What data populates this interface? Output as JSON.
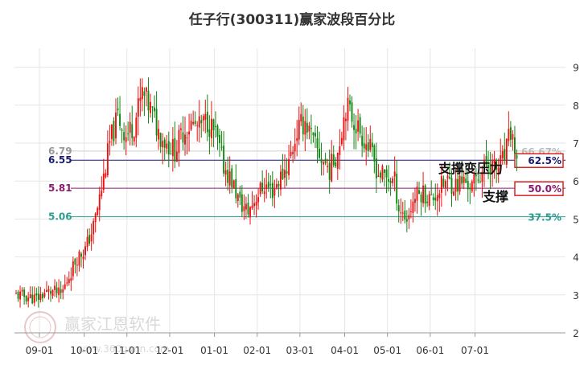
{
  "title": "任子行(300311)赢家波段百分比",
  "watermark": {
    "brand": "赢家江恩软件",
    "url": "www.360gann.com"
  },
  "colors": {
    "up": "#ee1111",
    "down": "#118811",
    "grid": "#e6e6e6",
    "line_6_55": "#1a1a6e",
    "line_5_81": "#8b1a6e",
    "line_5_06": "#2a9d8f",
    "line_6_79": "#cfcfcf"
  },
  "chart_data": {
    "type": "candlestick",
    "title": "任子行(300311)赢家波段百分比",
    "y_ticks": [
      2,
      3,
      4,
      5,
      6,
      7,
      8,
      9
    ],
    "ylim": [
      2,
      9.5
    ],
    "x_ticks": [
      "09-01",
      "10-01",
      "11-01",
      "12-01",
      "01-01",
      "02-01",
      "03-01",
      "04-01",
      "05-01",
      "06-01",
      "07-01"
    ],
    "levels": [
      {
        "value": 6.79,
        "label_left": "6.79",
        "label_right": "66.67%",
        "color": "#cfcfcf",
        "box": false
      },
      {
        "value": 6.55,
        "label_left": "6.55",
        "label_right": "62.5%",
        "color": "#1a1a6e",
        "box": true
      },
      {
        "value": 5.81,
        "label_left": "5.81",
        "label_right": "50.0%",
        "color": "#8b1a6e",
        "box": true
      },
      {
        "value": 5.06,
        "label_left": "5.06",
        "label_right": "37.5%",
        "color": "#2a9d8f",
        "box": false
      }
    ],
    "annotations": [
      "支撑变压力",
      "支撑"
    ],
    "close_path": [
      [
        0,
        3.0
      ],
      [
        6,
        2.95
      ],
      [
        10,
        2.9
      ],
      [
        14,
        3.05
      ],
      [
        18,
        3.1
      ],
      [
        22,
        3.0
      ],
      [
        26,
        3.5
      ],
      [
        30,
        4.0
      ],
      [
        34,
        4.2
      ],
      [
        38,
        4.8
      ],
      [
        42,
        5.8
      ],
      [
        46,
        7.0
      ],
      [
        50,
        7.7
      ],
      [
        54,
        7.2
      ],
      [
        58,
        7.5
      ],
      [
        62,
        8.3
      ],
      [
        66,
        7.9
      ],
      [
        70,
        7.3
      ],
      [
        74,
        7.0
      ],
      [
        78,
        6.8
      ],
      [
        82,
        7.3
      ],
      [
        86,
        7.5
      ],
      [
        90,
        7.4
      ],
      [
        94,
        7.6
      ],
      [
        98,
        7.2
      ],
      [
        102,
        6.4
      ],
      [
        106,
        6.0
      ],
      [
        110,
        5.4
      ],
      [
        114,
        5.2
      ],
      [
        118,
        5.6
      ],
      [
        122,
        5.9
      ],
      [
        126,
        5.75
      ],
      [
        130,
        6.1
      ],
      [
        134,
        6.5
      ],
      [
        138,
        7.3
      ],
      [
        142,
        7.6
      ],
      [
        146,
        7.0
      ],
      [
        150,
        6.6
      ],
      [
        154,
        6.3
      ],
      [
        158,
        6.8
      ],
      [
        162,
        8.0
      ],
      [
        166,
        7.6
      ],
      [
        170,
        7.2
      ],
      [
        174,
        6.8
      ],
      [
        178,
        6.2
      ],
      [
        182,
        6.1
      ],
      [
        186,
        6.0
      ],
      [
        188,
        5.3
      ],
      [
        192,
        5.0
      ],
      [
        196,
        5.6
      ],
      [
        200,
        5.7
      ],
      [
        204,
        5.5
      ],
      [
        208,
        5.8
      ],
      [
        212,
        6.0
      ],
      [
        216,
        5.9
      ],
      [
        220,
        6.0
      ],
      [
        224,
        5.85
      ],
      [
        228,
        6.2
      ],
      [
        232,
        6.5
      ],
      [
        236,
        6.3
      ],
      [
        240,
        6.6
      ],
      [
        243,
        7.3
      ],
      [
        246,
        6.6
      ]
    ]
  }
}
